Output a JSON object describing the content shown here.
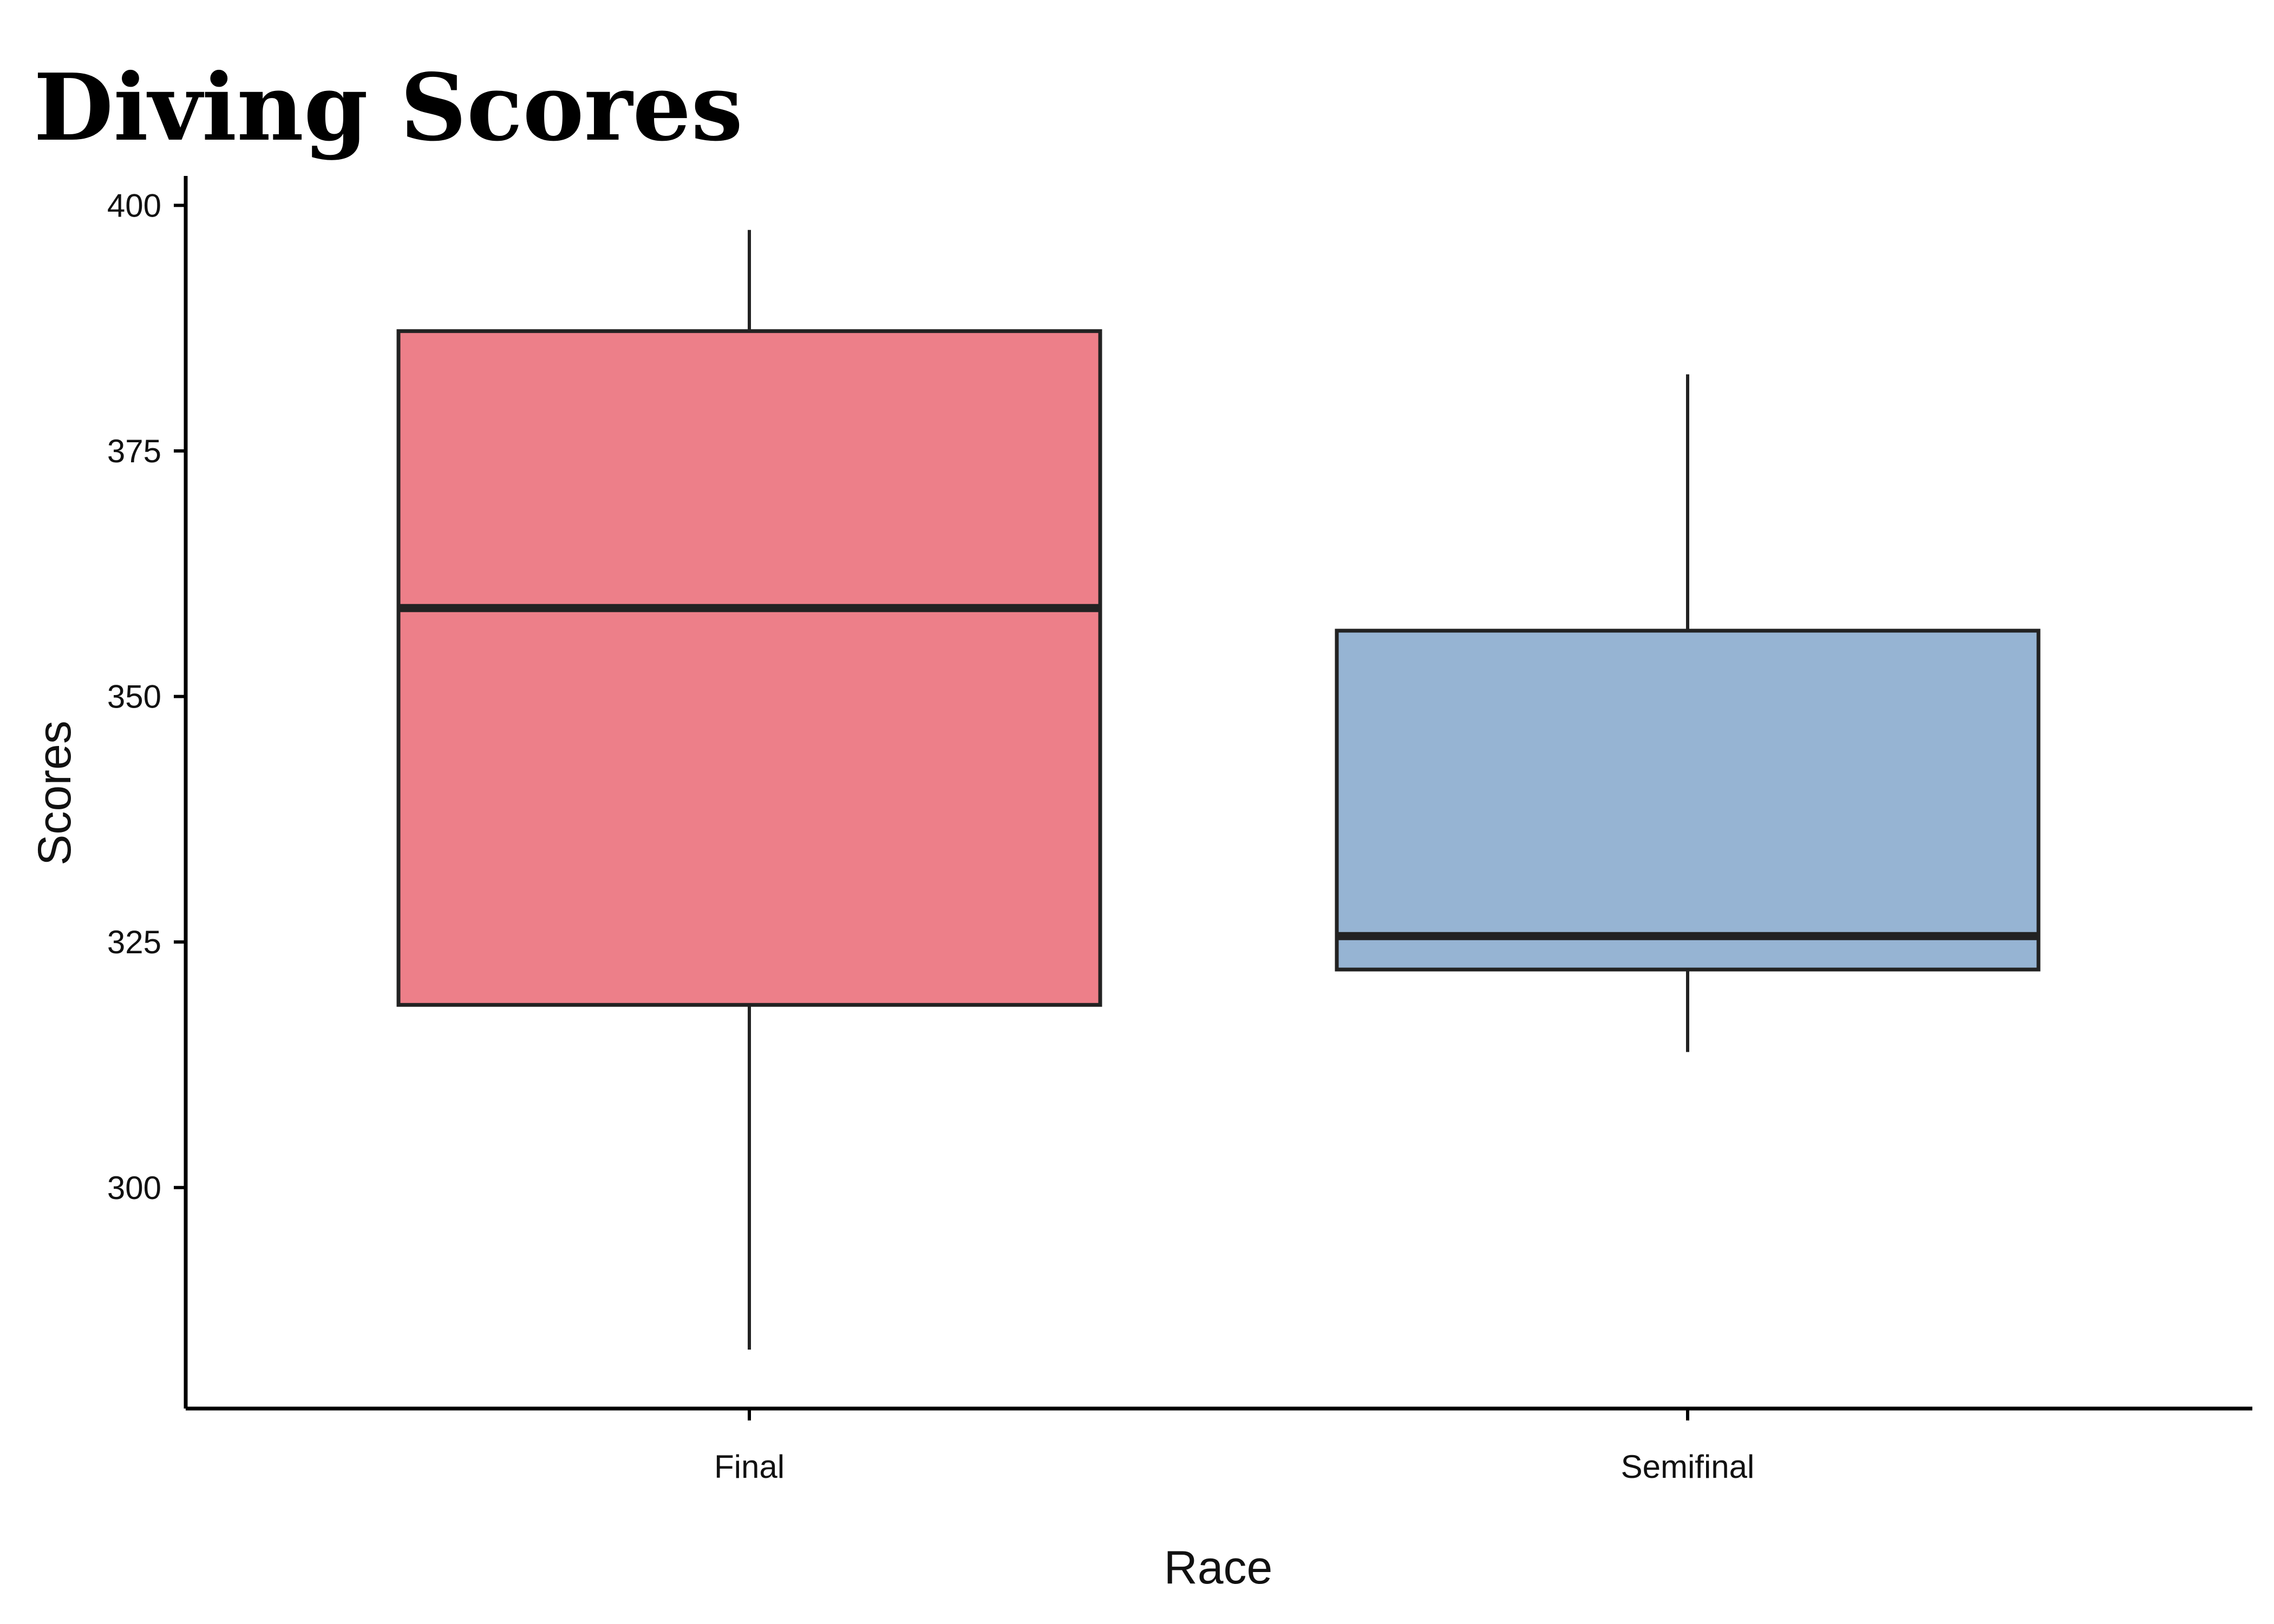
{
  "chart_data": {
    "type": "boxplot",
    "title": "Diving Scores",
    "xlabel": "Race",
    "ylabel": "Scores",
    "ylim": [
      277.5,
      403
    ],
    "yticks": [
      300,
      325,
      350,
      375,
      400
    ],
    "grid": false,
    "legend": "none",
    "categories": [
      "Final",
      "Semifinal"
    ],
    "boxes": [
      {
        "category": "Final",
        "whisker_low": 283.5,
        "q1": 318.6,
        "median": 359.0,
        "q3": 387.2,
        "whisker_high": 397.5,
        "color": "#ED7F89"
      },
      {
        "category": "Semifinal",
        "whisker_low": 313.8,
        "q1": 322.2,
        "median": 325.6,
        "q3": 356.7,
        "whisker_high": 382.8,
        "color": "#96B4D3"
      }
    ]
  }
}
